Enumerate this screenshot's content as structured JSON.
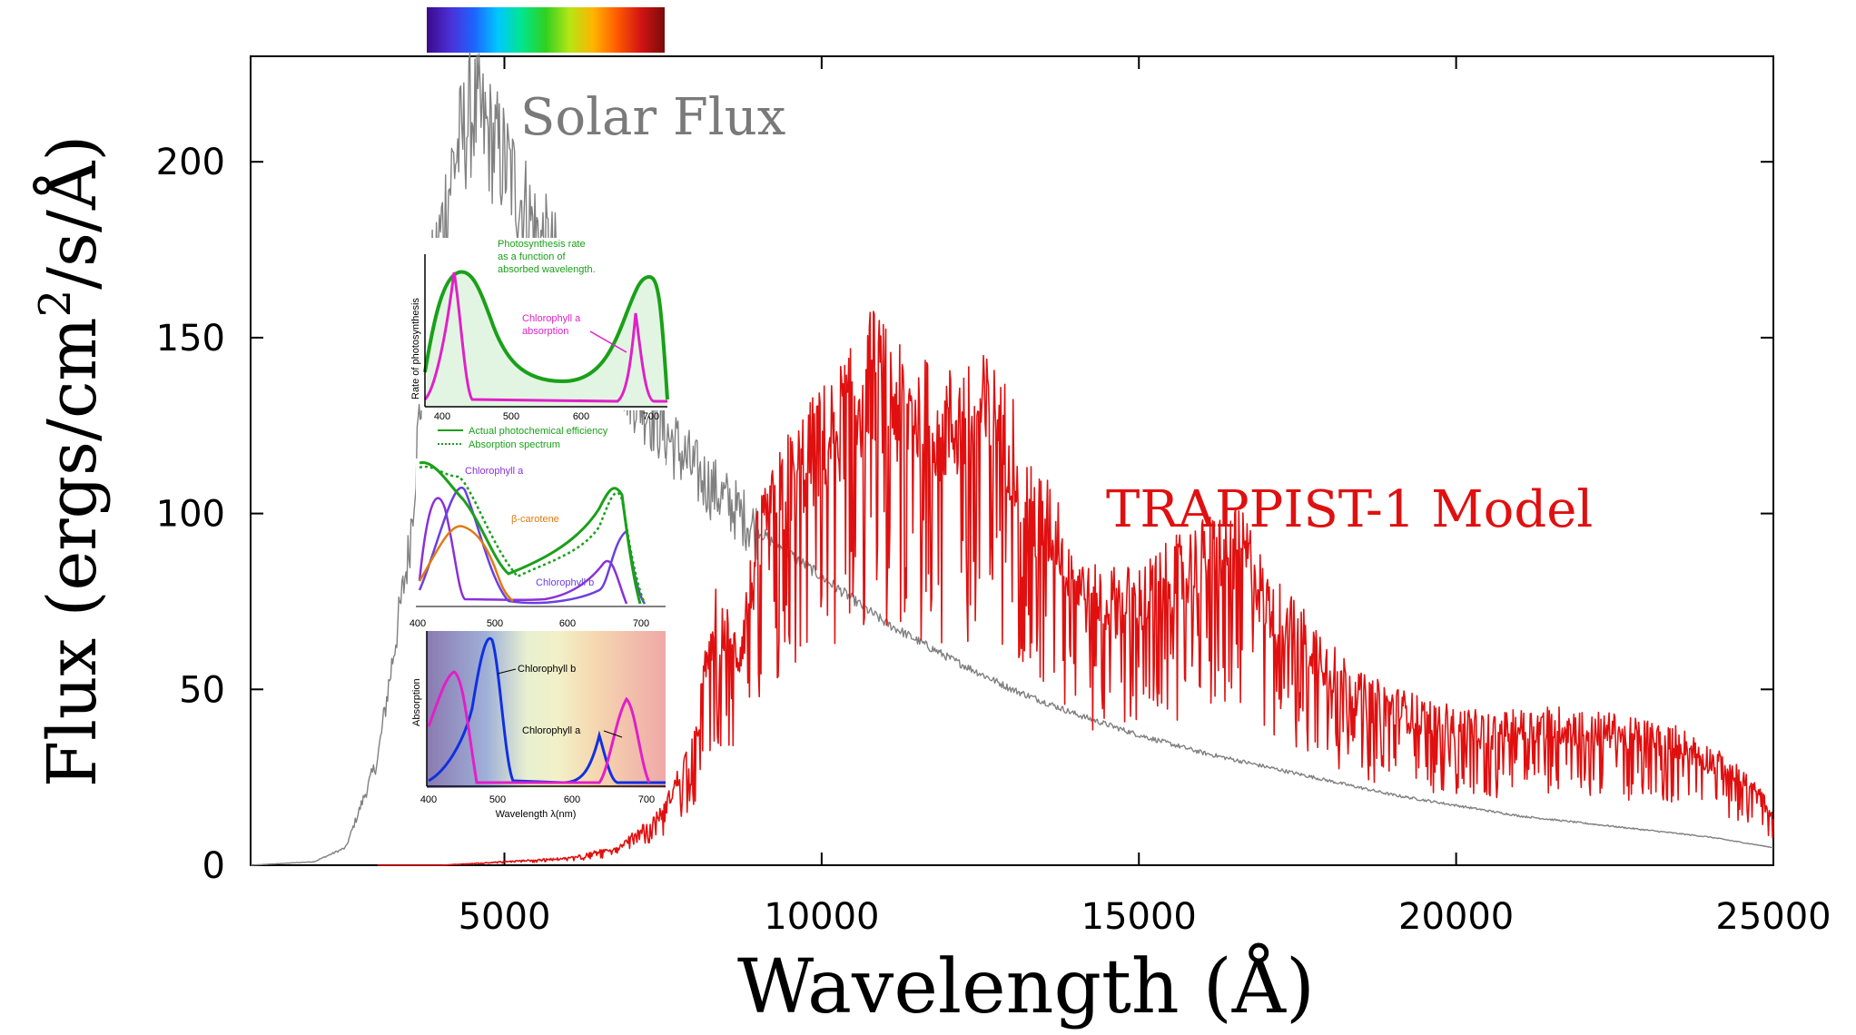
{
  "chart_data": {
    "type": "line",
    "xlabel": "Wavelength (Å)",
    "ylabel_main": "Flux (ergs/cm",
    "ylabel_sup": "2",
    "ylabel_tail": "/s/Å)",
    "xlim": [
      1000,
      25000
    ],
    "ylim": [
      0,
      230
    ],
    "x_ticks": [
      5000,
      10000,
      15000,
      20000,
      25000
    ],
    "x_tick_labels": [
      "5000",
      "10000",
      "15000",
      "20000",
      "25000"
    ],
    "y_ticks": [
      0,
      50,
      100,
      150,
      200
    ],
    "y_tick_labels": [
      "0",
      "50",
      "100",
      "150",
      "200"
    ],
    "grid": false,
    "series": [
      {
        "name": "Solar Flux",
        "color": "#808080",
        "x": [
          1000,
          2000,
          2500,
          3000,
          3500,
          3800,
          4200,
          4500,
          5000,
          5500,
          6000,
          6500,
          7000,
          7500,
          8000,
          9000,
          10000,
          11000,
          12000,
          13000,
          14000,
          15000,
          16000,
          17000,
          18000,
          19000,
          20000,
          21000,
          22000,
          23000,
          24000,
          25000
        ],
        "y": [
          0,
          1,
          5,
          30,
          90,
          160,
          200,
          215,
          200,
          180,
          165,
          150,
          136,
          124,
          112,
          95,
          82,
          69,
          59,
          50,
          43,
          37,
          32,
          28,
          24,
          20,
          17,
          14,
          12,
          10,
          8,
          5
        ]
      },
      {
        "name": "TRAPPIST-1 Model",
        "color": "#e01010",
        "x": [
          3000,
          4000,
          5000,
          6000,
          6800,
          7500,
          8000,
          8300,
          8700,
          9000,
          9500,
          10000,
          10500,
          10800,
          11200,
          12000,
          12600,
          13000,
          13300,
          13700,
          14200,
          15000,
          15800,
          16400,
          16700,
          17000,
          17600,
          18500,
          19500,
          20500,
          21500,
          22500,
          23500,
          24500,
          25000
        ],
        "y": [
          0,
          0,
          1,
          2,
          5,
          15,
          35,
          70,
          60,
          90,
          110,
          120,
          130,
          140,
          130,
          125,
          128,
          120,
          100,
          95,
          75,
          75,
          85,
          90,
          88,
          75,
          65,
          48,
          42,
          38,
          40,
          38,
          35,
          25,
          15
        ]
      }
    ]
  },
  "spectrum_bar": {
    "stops": [
      "#3a0a8a",
      "#4b30d8",
      "#1e64ff",
      "#00c8ff",
      "#00e68c",
      "#30d020",
      "#b4e614",
      "#ffb400",
      "#ff5a00",
      "#d21414",
      "#7a0a0a"
    ]
  },
  "inset": {
    "panel1": {
      "ylabel": "Rate of photosynthesis",
      "note": [
        "Photosynthesis rate",
        "as a function of",
        "absorbed wavelength."
      ],
      "annotation": [
        "Chlorophyll a",
        "absorption"
      ],
      "ticks": [
        "400",
        "500",
        "600",
        "700"
      ],
      "legend": [
        "Actual photochemical efficiency",
        "Absorption spectrum"
      ]
    },
    "panel2": {
      "labels": [
        "Chlorophyll a",
        "β-carotene",
        "Chlorophyll b"
      ],
      "ticks": [
        "400",
        "500",
        "600",
        "700"
      ]
    },
    "panel3": {
      "ylabel": "Absorption",
      "labels": [
        "Chlorophyll b",
        "Chlorophyll a"
      ],
      "ticks": [
        "400",
        "500",
        "600",
        "700"
      ],
      "xlabel": "Wavelength λ(nm)"
    }
  }
}
